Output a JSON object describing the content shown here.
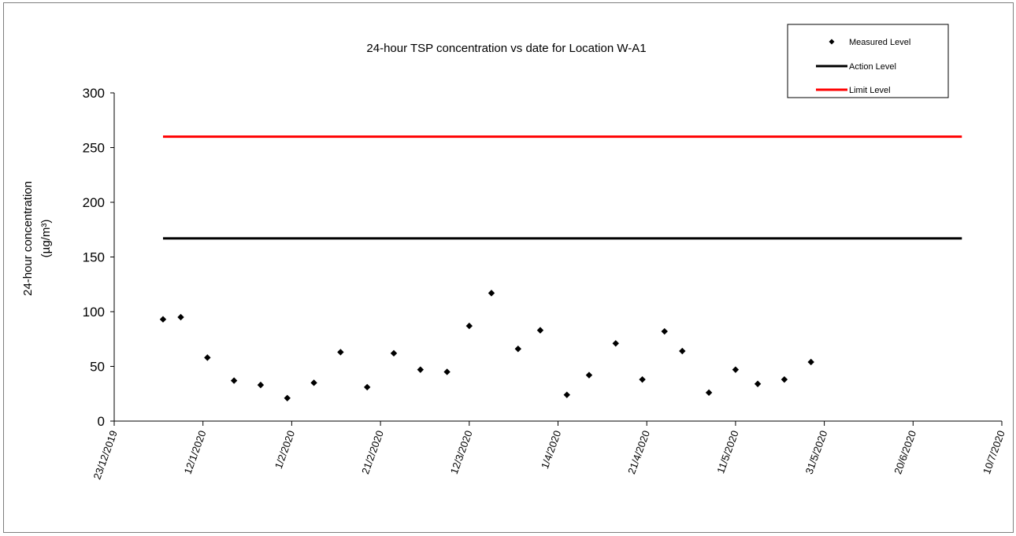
{
  "chart_data": {
    "type": "scatter",
    "title": "24-hour TSP concentration vs date for Location W-A1",
    "ylabel_line1": "24-hour concentration",
    "ylabel_line2": "(µg/m³)",
    "xlabel": "",
    "ylim": [
      0,
      300
    ],
    "yticks": [
      0,
      50,
      100,
      150,
      200,
      250,
      300
    ],
    "xlim": [
      "2019-12-23",
      "2020-07-10"
    ],
    "xticks": [
      {
        "date": "2019-12-23",
        "label": "23/12/2019"
      },
      {
        "date": "2020-01-12",
        "label": "12/1/2020"
      },
      {
        "date": "2020-02-01",
        "label": "1/2/2020"
      },
      {
        "date": "2020-02-21",
        "label": "21/2/2020"
      },
      {
        "date": "2020-03-12",
        "label": "12/3/2020"
      },
      {
        "date": "2020-04-01",
        "label": "1/4/2020"
      },
      {
        "date": "2020-04-21",
        "label": "21/4/2020"
      },
      {
        "date": "2020-05-11",
        "label": "11/5/2020"
      },
      {
        "date": "2020-05-31",
        "label": "31/5/2020"
      },
      {
        "date": "2020-06-20",
        "label": "20/6/2020"
      },
      {
        "date": "2020-07-10",
        "label": "10/7/2020"
      }
    ],
    "grid": false,
    "legend_position": "top-right",
    "series": [
      {
        "name": "Measured Level",
        "kind": "markers",
        "color": "#000000",
        "points": [
          {
            "x": "2020-01-03",
            "y": 93
          },
          {
            "x": "2020-01-07",
            "y": 95
          },
          {
            "x": "2020-01-13",
            "y": 58
          },
          {
            "x": "2020-01-19",
            "y": 37
          },
          {
            "x": "2020-01-25",
            "y": 33
          },
          {
            "x": "2020-01-31",
            "y": 21
          },
          {
            "x": "2020-02-06",
            "y": 35
          },
          {
            "x": "2020-02-12",
            "y": 63
          },
          {
            "x": "2020-02-18",
            "y": 31
          },
          {
            "x": "2020-02-24",
            "y": 62
          },
          {
            "x": "2020-03-01",
            "y": 47
          },
          {
            "x": "2020-03-07",
            "y": 45
          },
          {
            "x": "2020-03-12",
            "y": 87
          },
          {
            "x": "2020-03-17",
            "y": 117
          },
          {
            "x": "2020-03-23",
            "y": 66
          },
          {
            "x": "2020-03-28",
            "y": 83
          },
          {
            "x": "2020-04-03",
            "y": 24
          },
          {
            "x": "2020-04-08",
            "y": 42
          },
          {
            "x": "2020-04-14",
            "y": 71
          },
          {
            "x": "2020-04-20",
            "y": 38
          },
          {
            "x": "2020-04-25",
            "y": 82
          },
          {
            "x": "2020-04-29",
            "y": 64
          },
          {
            "x": "2020-05-05",
            "y": 26
          },
          {
            "x": "2020-05-11",
            "y": 47
          },
          {
            "x": "2020-05-16",
            "y": 34
          },
          {
            "x": "2020-05-22",
            "y": 38
          },
          {
            "x": "2020-05-28",
            "y": 54
          }
        ]
      },
      {
        "name": "Action Level",
        "kind": "line",
        "color": "#000000",
        "points": [
          {
            "x": "2020-01-03",
            "y": 167
          },
          {
            "x": "2020-07-01",
            "y": 167
          }
        ]
      },
      {
        "name": "Limit Level",
        "kind": "line",
        "color": "#ff0000",
        "points": [
          {
            "x": "2020-01-03",
            "y": 260
          },
          {
            "x": "2020-07-01",
            "y": 260
          }
        ]
      }
    ]
  }
}
